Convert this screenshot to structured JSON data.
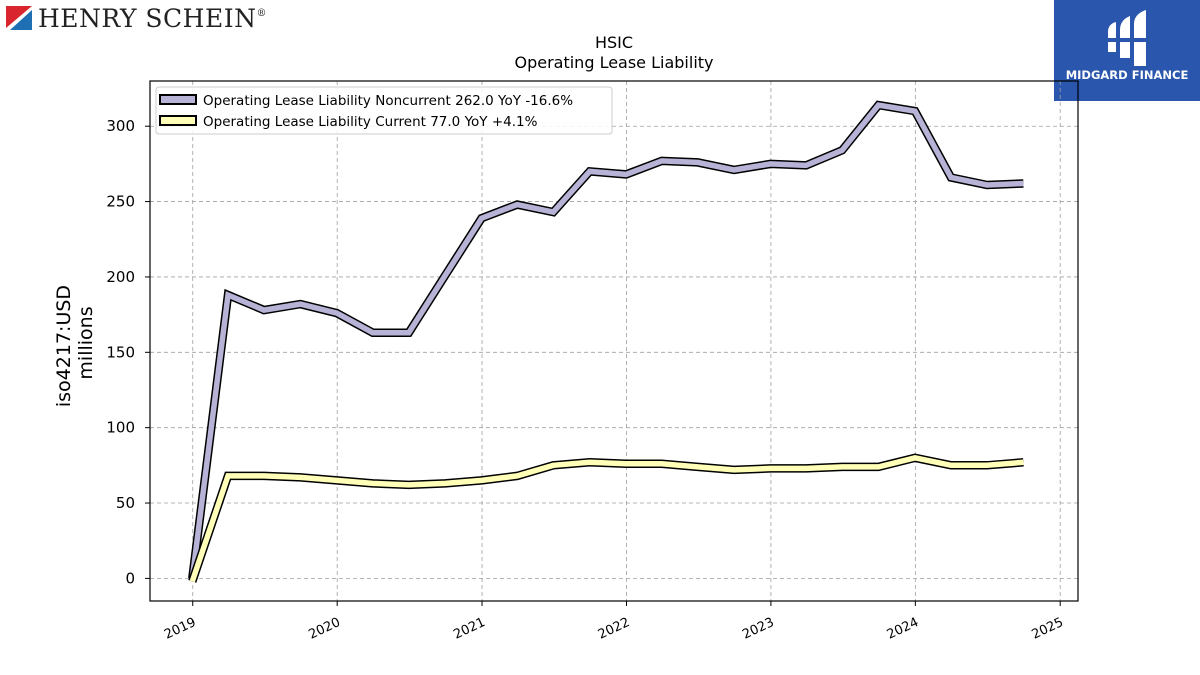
{
  "brand_left": {
    "name": "Henry Schein",
    "wordmark": "HENRY SCHEIN",
    "trademark": "®"
  },
  "brand_right": {
    "name": "MIDGARD FINANCE"
  },
  "chart_data": {
    "type": "line",
    "title": "HSIC",
    "subtitle": "Operating Lease Liability",
    "ylabel": "iso4217:USD\nmillions",
    "xlabel": "",
    "ylim": [
      -15,
      330
    ],
    "yticks": [
      0,
      50,
      100,
      150,
      200,
      250,
      300
    ],
    "xlim": [
      "2018-09-15",
      "2025-02-15"
    ],
    "xticks": [
      "2019",
      "2020",
      "2021",
      "2022",
      "2023",
      "2024",
      "2025"
    ],
    "grid": true,
    "legend_position": "top-left",
    "x": [
      "2018-12-31",
      "2019-03-31",
      "2019-06-30",
      "2019-09-30",
      "2019-12-31",
      "2020-03-31",
      "2020-06-30",
      "2020-09-30",
      "2020-12-31",
      "2021-03-31",
      "2021-06-30",
      "2021-09-30",
      "2021-12-31",
      "2022-03-31",
      "2022-06-30",
      "2022-09-30",
      "2022-12-31",
      "2023-03-31",
      "2023-06-30",
      "2023-09-30",
      "2023-12-31",
      "2024-03-31",
      "2024-06-30",
      "2024-09-30"
    ],
    "series": [
      {
        "name": "Operating Lease Liability Noncurrent",
        "legend_label": "Operating Lease Liability Noncurrent  262.0 YoY -16.6%",
        "color": "#b7b3d6",
        "values": [
          0,
          188,
          178,
          182,
          176,
          163,
          163,
          201,
          239,
          248,
          243,
          270,
          268,
          277,
          276,
          271,
          275,
          274,
          284,
          314,
          310,
          266,
          261,
          262
        ]
      },
      {
        "name": "Operating Lease Liability Current",
        "legend_label": "Operating Lease Liability Current  77.0 YoY +4.1%",
        "color": "#ffffb8",
        "values": [
          -2,
          68,
          68,
          67,
          65,
          63,
          62,
          63,
          65,
          68,
          75,
          77,
          76,
          76,
          74,
          72,
          73,
          73,
          74,
          74,
          80,
          75,
          75,
          77
        ]
      }
    ]
  }
}
